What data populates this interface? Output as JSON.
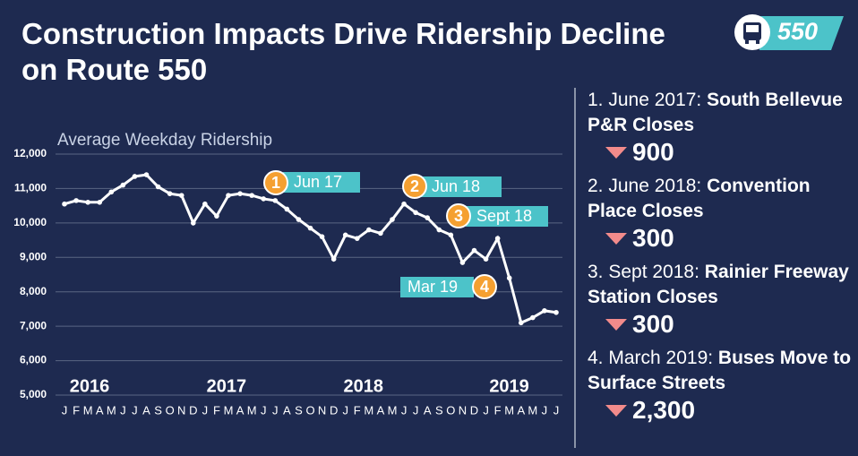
{
  "chart_data": {
    "type": "line",
    "title": "Construction Impacts Drive Ridership Decline on Route 550",
    "subtitle": "Average Weekday Ridership",
    "logo": "550",
    "categories": [
      "J",
      "F",
      "M",
      "A",
      "M",
      "J",
      "J",
      "A",
      "S",
      "O",
      "N",
      "D",
      "J",
      "F",
      "M",
      "A",
      "M",
      "J",
      "J",
      "A",
      "S",
      "O",
      "N",
      "D",
      "J",
      "F",
      "M",
      "A",
      "M",
      "J",
      "J",
      "A",
      "S",
      "O",
      "N",
      "D",
      "J",
      "F",
      "M",
      "A",
      "M",
      "J",
      "J"
    ],
    "year_labels": [
      "2016",
      "2017",
      "2018",
      "2019"
    ],
    "series": [
      {
        "name": "Average Weekday Ridership",
        "color": "#ffffff",
        "values": [
          10550,
          10650,
          10600,
          10600,
          10900,
          11100,
          11350,
          11400,
          11050,
          10850,
          10800,
          10000,
          10550,
          10200,
          10800,
          10850,
          10800,
          10700,
          10650,
          10400,
          10100,
          9850,
          9600,
          8950,
          9650,
          9550,
          9800,
          9700,
          10100,
          10550,
          10300,
          10150,
          9800,
          9650,
          8850,
          9200,
          8950,
          9550,
          8400,
          7100,
          7250,
          7450,
          7400
        ]
      }
    ],
    "ylim": [
      5000,
      12000
    ],
    "yticks": [
      {
        "value": 5000,
        "label": "5,000"
      },
      {
        "value": 6000,
        "label": "6,000"
      },
      {
        "value": 7000,
        "label": "7,000"
      },
      {
        "value": 8000,
        "label": "8,000"
      },
      {
        "value": 9000,
        "label": "9,000"
      },
      {
        "value": 10000,
        "label": "10,000"
      },
      {
        "value": 11000,
        "label": "11,000"
      },
      {
        "value": 12000,
        "label": "12,000"
      }
    ],
    "grid": true,
    "annotations": [
      {
        "number": "1",
        "label": "Jun 17"
      },
      {
        "number": "2",
        "label": "Jun 18"
      },
      {
        "number": "3",
        "label": "Sept 18"
      },
      {
        "number": "4",
        "label": "Mar 19"
      }
    ]
  },
  "impacts": [
    {
      "text": "1. June 2017: ",
      "bold": "South Bellevue P&R Closes",
      "change": "900"
    },
    {
      "text": "2. June 2018: ",
      "bold": "Convention Place Closes",
      "change": "300"
    },
    {
      "text": "3. Sept 2018: ",
      "bold": "Rainier Freeway Station Closes",
      "change": "300"
    },
    {
      "text": "4. March 2019: ",
      "bold": "Buses Move to Surface Streets",
      "change": "2,300"
    }
  ]
}
